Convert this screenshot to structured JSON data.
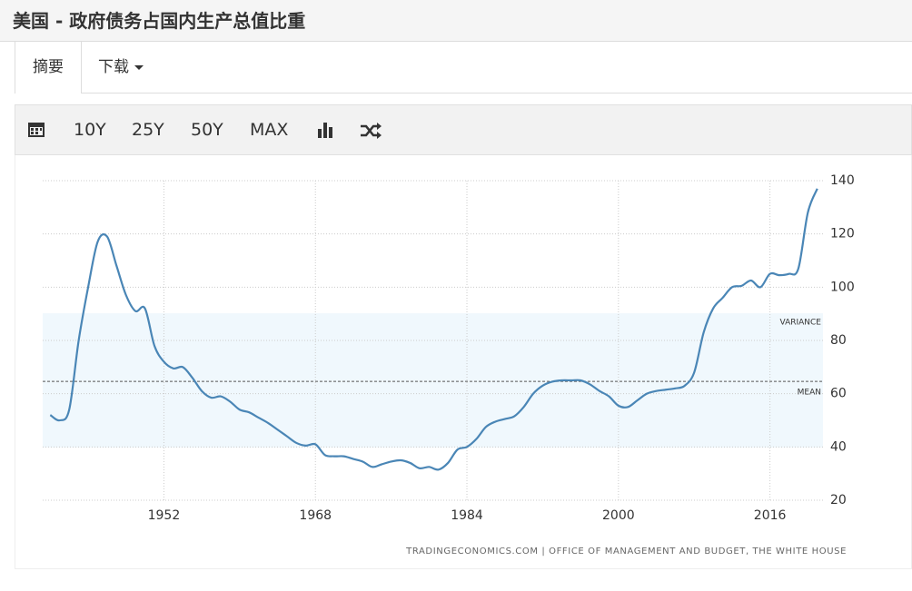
{
  "header": {
    "title": "美国 - 政府债务占国内生产总值比重"
  },
  "tabs": [
    "摘要",
    "下载"
  ],
  "toolbar": {
    "ranges": [
      "10Y",
      "25Y",
      "50Y",
      "MAX"
    ]
  },
  "chart_data": {
    "type": "line",
    "color": "#4a86b6",
    "x": [
      1940,
      1941,
      1942,
      1943,
      1944,
      1945,
      1946,
      1947,
      1948,
      1949,
      1950,
      1951,
      1952,
      1953,
      1954,
      1955,
      1956,
      1957,
      1958,
      1959,
      1960,
      1961,
      1962,
      1963,
      1964,
      1965,
      1966,
      1967,
      1968,
      1969,
      1970,
      1971,
      1972,
      1973,
      1974,
      1975,
      1976,
      1977,
      1978,
      1979,
      1980,
      1981,
      1982,
      1983,
      1984,
      1985,
      1986,
      1987,
      1988,
      1989,
      1990,
      1991,
      1992,
      1993,
      1994,
      1995,
      1996,
      1997,
      1998,
      1999,
      2000,
      2001,
      2002,
      2003,
      2004,
      2005,
      2006,
      2007,
      2008,
      2009,
      2010,
      2011,
      2012,
      2013,
      2014,
      2015,
      2016,
      2017,
      2018,
      2019,
      2020,
      2021
    ],
    "values": [
      52,
      50,
      54,
      80,
      100,
      117,
      119,
      108,
      97,
      91,
      92,
      78,
      72,
      69.5,
      70,
      66,
      61,
      58.5,
      59,
      57,
      54,
      53,
      51,
      49,
      46.5,
      44,
      41.5,
      40.5,
      41,
      37,
      36.5,
      36.5,
      35.5,
      34.5,
      32.5,
      33.5,
      34.5,
      35,
      34,
      32,
      32.5,
      31.5,
      34,
      39,
      40,
      43,
      47.5,
      49.5,
      50.5,
      51.5,
      55,
      60,
      63,
      64.5,
      65,
      65,
      65,
      63.5,
      61,
      59,
      55.5,
      55,
      57.5,
      60,
      61,
      61.5,
      62,
      63,
      68,
      83,
      92,
      96,
      100,
      100.5,
      102.5,
      100,
      105,
      104.5,
      105,
      107,
      128,
      137
    ],
    "xlim": [
      1939.2,
      2021.6
    ],
    "xticks": [
      1952,
      1968,
      1984,
      2000,
      2016
    ],
    "ylim": [
      20,
      140
    ],
    "yticks": [
      20,
      40,
      60,
      80,
      100,
      120,
      140
    ],
    "grid": true,
    "mean": {
      "label": "MEAN",
      "value": 64.6
    },
    "variance": {
      "label": "VARIANCE",
      "range": [
        39.8,
        90.2
      ]
    },
    "source": "TRADINGECONOMICS.COM | OFFICE OF MANAGEMENT AND BUDGET, THE WHITE HOUSE"
  }
}
